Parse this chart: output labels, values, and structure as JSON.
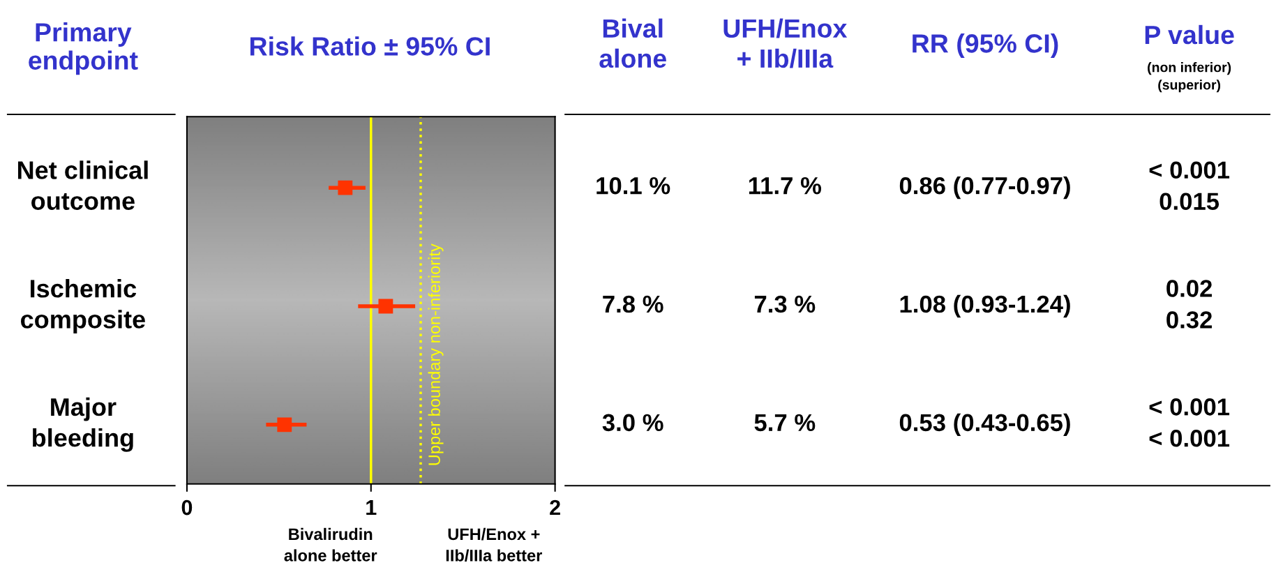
{
  "chart_data": {
    "type": "scatter",
    "title": "Risk Ratio ± 95% CI",
    "ylabel": "Primary endpoint",
    "categories": [
      "Net clinical\noutcome",
      "Ischemic\ncomposite",
      "Major\nbleeding"
    ],
    "orientation": "horizontal",
    "values": [
      0.86,
      1.08,
      0.53
    ],
    "errors": [
      [
        0.77,
        0.97
      ],
      [
        0.93,
        1.24
      ],
      [
        0.43,
        0.65
      ]
    ],
    "color": "#ff3300",
    "marker": "square",
    "value_labels": [
      "0.86 (0.77-0.97)",
      "1.08 (0.93-1.24)",
      "0.53 (0.43-0.65)"
    ],
    "xlim": [
      0,
      2
    ],
    "xticks": [
      0,
      1,
      2
    ],
    "ref_lines": [
      {
        "axis": "x",
        "value": 1,
        "label": null,
        "color": "#ffff00",
        "line_style": "solid"
      },
      {
        "axis": "x",
        "value": 1.27,
        "label": "Upper boundary non-inferiority",
        "color": "#ffff00",
        "line_style": "dotted"
      }
    ],
    "annotations": [
      "Bival\nalone",
      "UFH/Enox\n+ IIb/IIIa",
      "RR (95% CI)",
      "P value",
      "(non inferior)\n(superior)",
      "10.1 %",
      "11.7 %",
      "< 0.001\n0.015",
      "7.8 %",
      "7.3 %",
      "0.02\n0.32",
      "3.0 %",
      "5.7 %",
      "< 0.001\n< 0.001",
      "Bivalirudin\nalone better",
      "UFH/Enox +\nIIb/IIIa better"
    ]
  }
}
